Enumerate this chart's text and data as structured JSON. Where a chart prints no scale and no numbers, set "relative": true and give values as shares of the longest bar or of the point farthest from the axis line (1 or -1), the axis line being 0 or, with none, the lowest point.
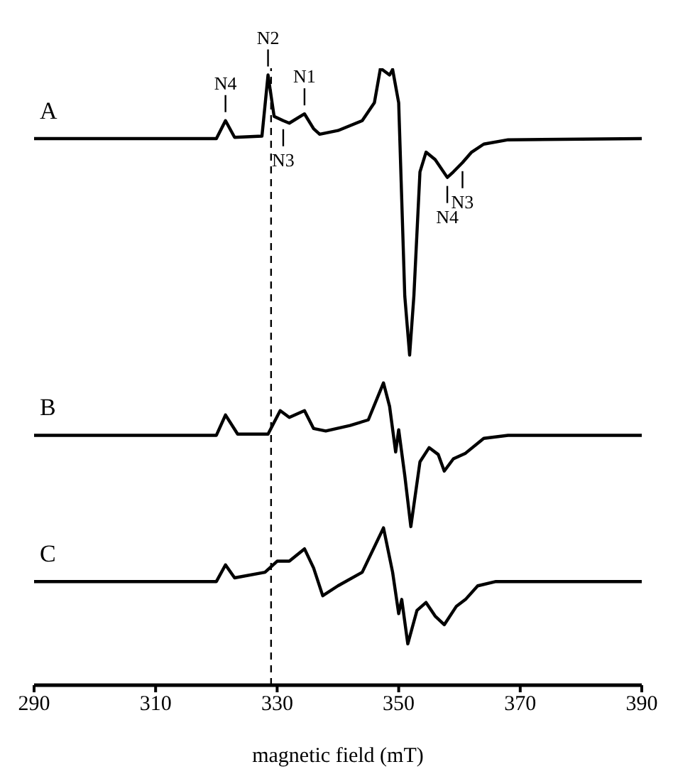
{
  "chart_data": {
    "type": "line",
    "relative": true,
    "xlabel": "magnetic field (mT)",
    "xlim": [
      290,
      390
    ],
    "xticks": [
      290,
      310,
      330,
      350,
      370,
      390
    ],
    "tick_labels": "x",
    "grid": false,
    "legend": false,
    "marker": "none",
    "line_style": "solid",
    "series": [
      {
        "name": "A",
        "color": "#000000",
        "x": [
          290,
          320,
          321.5,
          323,
          327.5,
          328.5,
          329.5,
          331,
          332,
          334.5,
          336,
          337,
          340,
          344,
          346,
          347,
          348.5,
          349,
          350,
          351,
          351.8,
          352.5,
          353.5,
          354.5,
          356,
          358,
          359,
          360.5,
          362,
          364,
          368,
          390
        ],
        "values": [
          0.886,
          0.886,
          0.915,
          0.888,
          0.89,
          0.989,
          0.922,
          0.915,
          0.911,
          0.926,
          0.902,
          0.893,
          0.899,
          0.915,
          0.944,
          1.0,
          0.989,
          0.998,
          0.944,
          0.631,
          0.535,
          0.631,
          0.832,
          0.864,
          0.852,
          0.823,
          0.832,
          0.847,
          0.864,
          0.877,
          0.884,
          0.886
        ]
      },
      {
        "name": "B",
        "color": "#000000",
        "x": [
          290,
          320,
          321.5,
          323.5,
          328.5,
          330.5,
          332,
          334.5,
          336,
          338,
          342,
          345,
          347.5,
          348.5,
          349.5,
          350,
          351,
          352,
          353.5,
          355,
          356.5,
          357.5,
          359,
          361,
          364,
          368,
          390
        ],
        "values": [
          0.405,
          0.405,
          0.438,
          0.407,
          0.407,
          0.445,
          0.434,
          0.445,
          0.416,
          0.412,
          0.421,
          0.43,
          0.49,
          0.452,
          0.378,
          0.414,
          0.34,
          0.257,
          0.362,
          0.385,
          0.374,
          0.347,
          0.367,
          0.376,
          0.4,
          0.405,
          0.405
        ]
      },
      {
        "name": "C",
        "color": "#000000",
        "x": [
          290,
          320,
          321.5,
          323,
          328,
          330,
          332,
          334.5,
          336,
          337.5,
          340,
          344,
          347.5,
          349,
          350,
          350.5,
          351.5,
          353,
          354.5,
          356,
          357.5,
          359.5,
          361,
          363,
          366,
          390
        ],
        "values": [
          0.168,
          0.168,
          0.195,
          0.174,
          0.183,
          0.201,
          0.201,
          0.221,
          0.19,
          0.145,
          0.161,
          0.183,
          0.255,
          0.183,
          0.116,
          0.139,
          0.067,
          0.121,
          0.134,
          0.112,
          0.098,
          0.128,
          0.139,
          0.161,
          0.168,
          0.168
        ]
      }
    ],
    "ref_lines": [
      {
        "axis": "x",
        "value": 329,
        "color": "#000000",
        "line_style": "dashed"
      }
    ],
    "annotations": [
      {
        "text": "N4",
        "x": 321.5,
        "y": 0.915
      },
      {
        "text": "N2",
        "x": 328.5,
        "y": 0.989
      },
      {
        "text": "N1",
        "x": 334.5,
        "y": 0.926
      },
      {
        "text": "N3",
        "x": 331,
        "y": 0.915
      },
      {
        "text": "N4",
        "x": 358,
        "y": 0.823
      },
      {
        "text": "N3",
        "x": 360.5,
        "y": 0.847
      }
    ]
  }
}
